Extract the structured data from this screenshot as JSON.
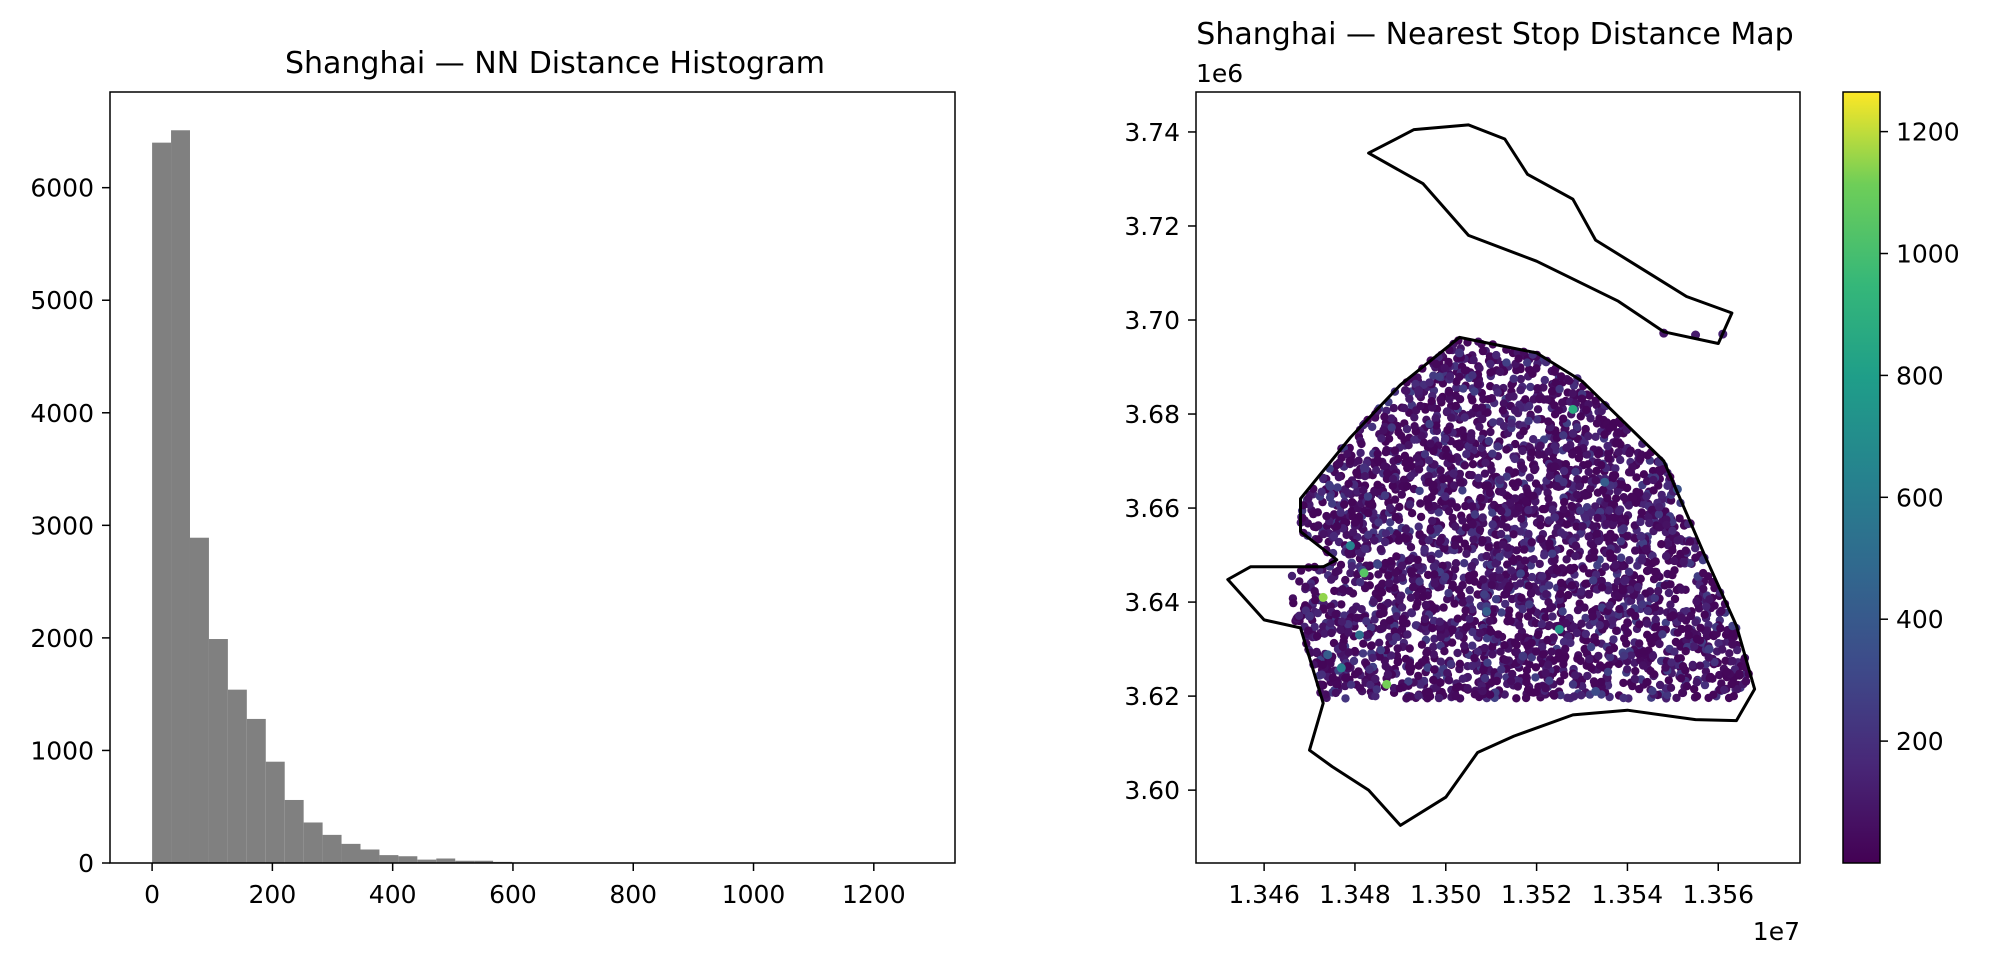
{
  "chart_data": [
    {
      "type": "bar",
      "subtype": "histogram",
      "title": "Shanghai — NN Distance Histogram",
      "xlabel": "",
      "ylabel": "",
      "xlim": [
        -70,
        1335
      ],
      "ylim": [
        0,
        6850
      ],
      "bar_color": "#808080",
      "grid": false,
      "bin_start": 0,
      "bin_width": 31.5,
      "values": [
        6400,
        6510,
        2890,
        1990,
        1540,
        1280,
        900,
        560,
        360,
        250,
        170,
        120,
        70,
        60,
        30,
        40,
        20,
        20,
        10,
        5,
        5,
        3,
        2,
        2,
        1,
        1,
        1,
        1,
        1,
        0,
        0,
        0,
        0,
        0,
        0,
        0,
        0,
        0,
        0,
        1
      ],
      "xticks": [
        0,
        200,
        400,
        600,
        800,
        1000,
        1200
      ],
      "xtick_labels": [
        "0",
        "200",
        "400",
        "600",
        "800",
        "1000",
        "1200"
      ],
      "yticks": [
        0,
        1000,
        2000,
        3000,
        4000,
        5000,
        6000
      ],
      "ytick_labels": [
        "0",
        "1000",
        "2000",
        "3000",
        "4000",
        "5000",
        "6000"
      ]
    },
    {
      "type": "scatter",
      "subtype": "map",
      "title": "Shanghai — Nearest Stop Distance Map",
      "xlabel": "",
      "ylabel": "",
      "x_unit_scale": 10000000,
      "y_unit_scale": 1000000,
      "x_offset_label": "1e7",
      "y_offset_label": "1e6",
      "xlim": [
        1.3445,
        1.3578
      ],
      "ylim": [
        3.5845,
        3.7485
      ],
      "xticks": [
        1.346,
        1.348,
        1.35,
        1.352,
        1.354,
        1.356
      ],
      "xtick_labels": [
        "1.346",
        "1.348",
        "1.350",
        "1.352",
        "1.354",
        "1.356"
      ],
      "yticks": [
        3.6,
        3.62,
        3.64,
        3.66,
        3.68,
        3.7,
        3.72,
        3.74
      ],
      "ytick_labels": [
        "3.60",
        "3.62",
        "3.64",
        "3.66",
        "3.68",
        "3.70",
        "3.72",
        "3.74"
      ],
      "colormap": "viridis",
      "color_range": [
        0,
        1265
      ],
      "colorbar_ticks": [
        200,
        400,
        600,
        800,
        1000,
        1200
      ],
      "colorbar_tick_labels": [
        "200",
        "400",
        "600",
        "800",
        "1000",
        "1200"
      ],
      "boundary_mainland": [
        [
          1.3452,
          3.6448
        ],
        [
          1.3457,
          3.6475
        ],
        [
          1.3473,
          3.6475
        ],
        [
          1.3476,
          3.649
        ],
        [
          1.3468,
          3.655
        ],
        [
          1.3468,
          3.662
        ],
        [
          1.3479,
          3.675
        ],
        [
          1.349,
          3.6862
        ],
        [
          1.3503,
          3.6963
        ],
        [
          1.352,
          3.693
        ],
        [
          1.353,
          3.687
        ],
        [
          1.3548,
          3.67
        ],
        [
          1.3557,
          3.65
        ],
        [
          1.3564,
          3.635
        ],
        [
          1.3568,
          3.6215
        ],
        [
          1.3564,
          3.6148
        ],
        [
          1.3555,
          3.615
        ],
        [
          1.354,
          3.617
        ],
        [
          1.3528,
          3.616
        ],
        [
          1.3515,
          3.6115
        ],
        [
          1.3507,
          3.608
        ],
        [
          1.35,
          3.5985
        ],
        [
          1.349,
          3.5925
        ],
        [
          1.3483,
          3.6
        ],
        [
          1.3475,
          3.605
        ],
        [
          1.347,
          3.6085
        ],
        [
          1.3473,
          3.6185
        ],
        [
          1.3468,
          3.6345
        ],
        [
          1.346,
          3.6362
        ],
        [
          1.3452,
          3.6448
        ]
      ],
      "boundary_island": [
        [
          1.3483,
          3.7355
        ],
        [
          1.3493,
          3.7405
        ],
        [
          1.3505,
          3.7415
        ],
        [
          1.3513,
          3.7385
        ],
        [
          1.3518,
          3.731
        ],
        [
          1.3528,
          3.7257
        ],
        [
          1.3533,
          3.717
        ],
        [
          1.3543,
          3.711
        ],
        [
          1.3553,
          3.705
        ],
        [
          1.3563,
          3.7015
        ],
        [
          1.356,
          3.695
        ],
        [
          1.3548,
          3.6975
        ],
        [
          1.3538,
          3.704
        ],
        [
          1.352,
          3.7125
        ],
        [
          1.3505,
          3.718
        ],
        [
          1.3495,
          3.729
        ],
        [
          1.3483,
          3.7355
        ]
      ],
      "points": [
        [
          1.3485,
          3.648,
          300
        ],
        [
          1.3479,
          3.652,
          640
        ],
        [
          1.3473,
          3.641,
          1150
        ],
        [
          1.3482,
          3.6462,
          1050
        ],
        [
          1.3525,
          3.6342,
          760
        ],
        [
          1.3487,
          3.6225,
          1120
        ],
        [
          1.3481,
          3.633,
          520
        ],
        [
          1.3477,
          3.626,
          610
        ],
        [
          1.3509,
          3.638,
          430
        ],
        [
          1.3535,
          3.6655,
          420
        ],
        [
          1.3528,
          3.681,
          880
        ],
        [
          1.3517,
          3.6285,
          240
        ],
        [
          1.3551,
          3.664,
          360
        ],
        [
          1.3543,
          3.654,
          180
        ],
        [
          1.3474,
          3.6288,
          420
        ],
        [
          1.3503,
          3.693,
          210
        ],
        [
          1.3548,
          3.6972,
          90
        ],
        [
          1.3555,
          3.6968,
          110
        ],
        [
          1.3561,
          3.697,
          140
        ],
        [
          1.3494,
          3.685,
          120
        ],
        [
          1.3512,
          3.666,
          160
        ],
        [
          1.347,
          3.637,
          200
        ],
        [
          1.3558,
          3.63,
          260
        ],
        [
          1.3533,
          3.621,
          330
        ]
      ]
    }
  ]
}
